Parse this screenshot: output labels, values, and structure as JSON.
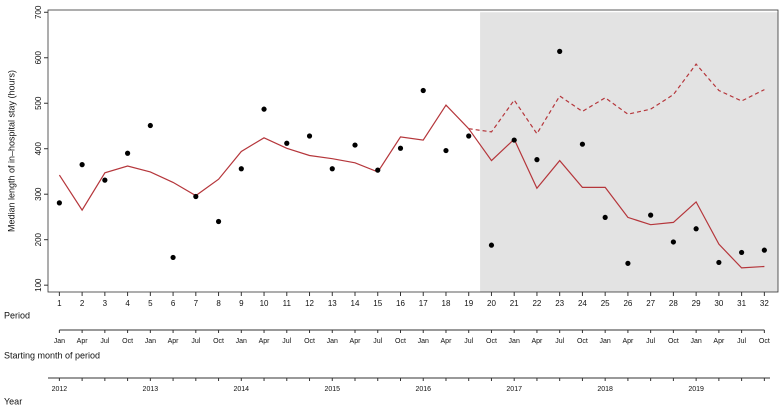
{
  "chart_data": {
    "type": "line",
    "ylabel": "Median length of in–hospital stay (hours)",
    "xlabel": "Period",
    "month_label": "Starting month of period",
    "year_label": "Year",
    "x": [
      1,
      2,
      3,
      4,
      5,
      6,
      7,
      8,
      9,
      10,
      11,
      12,
      13,
      14,
      15,
      16,
      17,
      18,
      19,
      20,
      21,
      22,
      23,
      24,
      25,
      26,
      27,
      28,
      29,
      30,
      31,
      32
    ],
    "xlim": [
      0.5,
      32.6
    ],
    "xticks": [
      1,
      2,
      3,
      4,
      5,
      6,
      7,
      8,
      9,
      10,
      11,
      12,
      13,
      14,
      15,
      16,
      17,
      18,
      19,
      20,
      21,
      22,
      23,
      24,
      25,
      26,
      27,
      28,
      29,
      30,
      31,
      32
    ],
    "months": [
      "Jan",
      "Apr",
      "Jul",
      "Oct",
      "Jan",
      "Apr",
      "Jul",
      "Oct",
      "Jan",
      "Apr",
      "Jul",
      "Oct",
      "Jan",
      "Apr",
      "Jul",
      "Oct",
      "Jan",
      "Apr",
      "Jul",
      "Oct",
      "Jan",
      "Apr",
      "Jul",
      "Oct",
      "Jan",
      "Apr",
      "Jul",
      "Oct",
      "Jan",
      "Apr",
      "Jul",
      "Oct"
    ],
    "years": [
      "2012",
      "2013",
      "2014",
      "2015",
      "2016",
      "2017",
      "2018",
      "2019"
    ],
    "year_periods": [
      1,
      5,
      9,
      13,
      17,
      21,
      25,
      29
    ],
    "ylim": [
      85,
      705
    ],
    "yticks": [
      100,
      200,
      300,
      400,
      500,
      600,
      700
    ],
    "shaded_from": 19.5,
    "shade_color": "#e3e3e3",
    "points": {
      "color": "#000000",
      "values": [
        281,
        365,
        331,
        390,
        451,
        161,
        295,
        240,
        356,
        487,
        412,
        428,
        356,
        408,
        353,
        401,
        528,
        396,
        428,
        188,
        419,
        376,
        614,
        410,
        249,
        148,
        254,
        195,
        224,
        150,
        172,
        177
      ]
    },
    "series": [
      {
        "color": "#b5363b",
        "style": "solid",
        "values": [
          342,
          265,
          347,
          362,
          349,
          326,
          297,
          333,
          394,
          424,
          401,
          385,
          378,
          369,
          349,
          426,
          419,
          496,
          444,
          374,
          421,
          313,
          374,
          315,
          315,
          249,
          233,
          238,
          283,
          190,
          138,
          141
        ]
      },
      {
        "color": "#b5363b",
        "style": "dashed",
        "values": [
          null,
          null,
          null,
          null,
          null,
          null,
          null,
          null,
          null,
          null,
          null,
          null,
          null,
          null,
          null,
          null,
          null,
          null,
          444,
          437,
          507,
          433,
          516,
          482,
          512,
          476,
          487,
          519,
          586,
          528,
          505,
          530
        ]
      }
    ]
  }
}
